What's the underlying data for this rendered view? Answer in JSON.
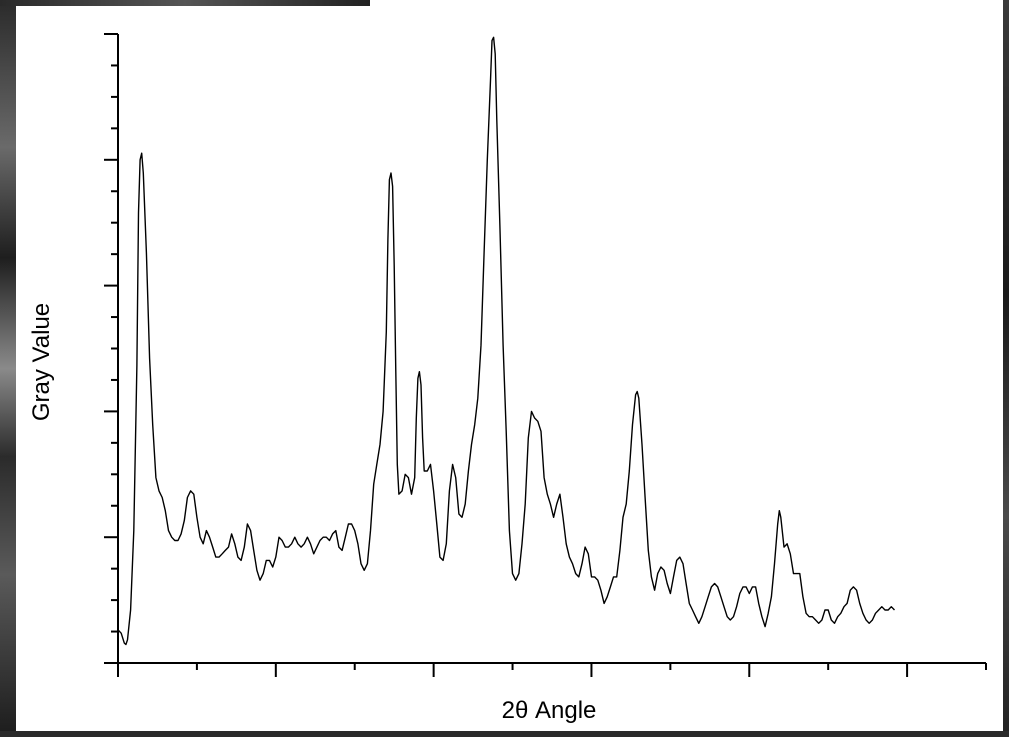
{
  "chart_data": {
    "type": "line",
    "title": "",
    "xlabel": "2θ Angle",
    "ylabel": "Gray Value",
    "xlim": [
      0,
      550
    ],
    "ylim": [
      0,
      95
    ],
    "x_tick_labels": [],
    "y_tick_labels": [],
    "grid": false,
    "legend": "none",
    "line_color": "#000000",
    "series": [
      {
        "points": [
          [
            0,
            5
          ],
          [
            2,
            4.5
          ],
          [
            4,
            3
          ],
          [
            5,
            2.8
          ],
          [
            6,
            3.5
          ],
          [
            8,
            8
          ],
          [
            10,
            20
          ],
          [
            12,
            45
          ],
          [
            13,
            68
          ],
          [
            14,
            76
          ],
          [
            15,
            77
          ],
          [
            16,
            74
          ],
          [
            18,
            62
          ],
          [
            20,
            46
          ],
          [
            22,
            36
          ],
          [
            24,
            28
          ],
          [
            26,
            26
          ],
          [
            28,
            25
          ],
          [
            30,
            23
          ],
          [
            32,
            20
          ],
          [
            34,
            19
          ],
          [
            36,
            18.5
          ],
          [
            38,
            18.5
          ],
          [
            40,
            19.5
          ],
          [
            42,
            21.5
          ],
          [
            44,
            25
          ],
          [
            46,
            26
          ],
          [
            48,
            25.5
          ],
          [
            50,
            22
          ],
          [
            52,
            19
          ],
          [
            54,
            18
          ],
          [
            56,
            20
          ],
          [
            58,
            19
          ],
          [
            60,
            17.5
          ],
          [
            62,
            16
          ],
          [
            64,
            16
          ],
          [
            66,
            16.5
          ],
          [
            68,
            17
          ],
          [
            70,
            17.5
          ],
          [
            72,
            19.5
          ],
          [
            74,
            18
          ],
          [
            76,
            16
          ],
          [
            78,
            15.5
          ],
          [
            80,
            17.5
          ],
          [
            82,
            21
          ],
          [
            84,
            20
          ],
          [
            86,
            17
          ],
          [
            88,
            14
          ],
          [
            90,
            12.5
          ],
          [
            92,
            13.5
          ],
          [
            94,
            15.5
          ],
          [
            96,
            15.5
          ],
          [
            98,
            14.5
          ],
          [
            100,
            16
          ],
          [
            102,
            19
          ],
          [
            104,
            18.5
          ],
          [
            106,
            17.5
          ],
          [
            108,
            17.5
          ],
          [
            110,
            18
          ],
          [
            112,
            19
          ],
          [
            114,
            18
          ],
          [
            116,
            17.5
          ],
          [
            118,
            18
          ],
          [
            120,
            19
          ],
          [
            122,
            18
          ],
          [
            124,
            16.5
          ],
          [
            126,
            17.5
          ],
          [
            128,
            18.5
          ],
          [
            130,
            19
          ],
          [
            132,
            19
          ],
          [
            134,
            18.5
          ],
          [
            136,
            19.5
          ],
          [
            138,
            20
          ],
          [
            140,
            17.5
          ],
          [
            142,
            17
          ],
          [
            144,
            19
          ],
          [
            146,
            21
          ],
          [
            148,
            21
          ],
          [
            150,
            20
          ],
          [
            152,
            18
          ],
          [
            154,
            15
          ],
          [
            156,
            14
          ],
          [
            158,
            15
          ],
          [
            160,
            20
          ],
          [
            162,
            27
          ],
          [
            164,
            30
          ],
          [
            166,
            33
          ],
          [
            168,
            38
          ],
          [
            170,
            50
          ],
          [
            171,
            64
          ],
          [
            172,
            73
          ],
          [
            173,
            74
          ],
          [
            174,
            72
          ],
          [
            175,
            60
          ],
          [
            176,
            44
          ],
          [
            177,
            30
          ],
          [
            178,
            25.5
          ],
          [
            180,
            26
          ],
          [
            182,
            28.5
          ],
          [
            184,
            28
          ],
          [
            186,
            25.5
          ],
          [
            188,
            28
          ],
          [
            189,
            37
          ],
          [
            190,
            43
          ],
          [
            191,
            44
          ],
          [
            192,
            42
          ],
          [
            193,
            34
          ],
          [
            194,
            29
          ],
          [
            196,
            29
          ],
          [
            198,
            30
          ],
          [
            200,
            26
          ],
          [
            202,
            21
          ],
          [
            204,
            16
          ],
          [
            206,
            15.5
          ],
          [
            208,
            18
          ],
          [
            210,
            26
          ],
          [
            212,
            30
          ],
          [
            214,
            28
          ],
          [
            216,
            22.5
          ],
          [
            218,
            22
          ],
          [
            220,
            24
          ],
          [
            222,
            29
          ],
          [
            224,
            33
          ],
          [
            226,
            36
          ],
          [
            228,
            40
          ],
          [
            230,
            48
          ],
          [
            232,
            62
          ],
          [
            234,
            76
          ],
          [
            236,
            88
          ],
          [
            237,
            94
          ],
          [
            238,
            94.5
          ],
          [
            239,
            92
          ],
          [
            240,
            82
          ],
          [
            242,
            66
          ],
          [
            244,
            48
          ],
          [
            246,
            35
          ],
          [
            248,
            20
          ],
          [
            250,
            13.5
          ],
          [
            252,
            12.5
          ],
          [
            254,
            13.5
          ],
          [
            256,
            18
          ],
          [
            258,
            24
          ],
          [
            260,
            34
          ],
          [
            262,
            38
          ],
          [
            264,
            37
          ],
          [
            266,
            36.5
          ],
          [
            268,
            35
          ],
          [
            270,
            28
          ],
          [
            272,
            25.5
          ],
          [
            274,
            24
          ],
          [
            276,
            22
          ],
          [
            278,
            24
          ],
          [
            280,
            25.5
          ],
          [
            282,
            22
          ],
          [
            284,
            18
          ],
          [
            286,
            16
          ],
          [
            288,
            15
          ],
          [
            290,
            13.5
          ],
          [
            292,
            13
          ],
          [
            294,
            15
          ],
          [
            296,
            17.5
          ],
          [
            298,
            16.5
          ],
          [
            300,
            13
          ],
          [
            302,
            13
          ],
          [
            304,
            12.5
          ],
          [
            306,
            11
          ],
          [
            308,
            9
          ],
          [
            310,
            10
          ],
          [
            312,
            11.5
          ],
          [
            314,
            13
          ],
          [
            316,
            13
          ],
          [
            318,
            17
          ],
          [
            320,
            22
          ],
          [
            322,
            24
          ],
          [
            324,
            29
          ],
          [
            326,
            36
          ],
          [
            328,
            40.5
          ],
          [
            329,
            41
          ],
          [
            330,
            40
          ],
          [
            332,
            33
          ],
          [
            334,
            25
          ],
          [
            336,
            17
          ],
          [
            338,
            13
          ],
          [
            340,
            11
          ],
          [
            342,
            13.5
          ],
          [
            344,
            14.5
          ],
          [
            346,
            14
          ],
          [
            348,
            12
          ],
          [
            350,
            10.5
          ],
          [
            352,
            13
          ],
          [
            354,
            15.5
          ],
          [
            356,
            16
          ],
          [
            358,
            15
          ],
          [
            360,
            12
          ],
          [
            362,
            9
          ],
          [
            364,
            8
          ],
          [
            366,
            7
          ],
          [
            368,
            6
          ],
          [
            370,
            7
          ],
          [
            372,
            8.5
          ],
          [
            374,
            10
          ],
          [
            376,
            11.5
          ],
          [
            378,
            12
          ],
          [
            380,
            11.5
          ],
          [
            382,
            10
          ],
          [
            384,
            8.5
          ],
          [
            386,
            7
          ],
          [
            388,
            6.5
          ],
          [
            390,
            7
          ],
          [
            392,
            8.5
          ],
          [
            394,
            10.5
          ],
          [
            396,
            11.5
          ],
          [
            398,
            11.5
          ],
          [
            400,
            10.5
          ],
          [
            402,
            11.5
          ],
          [
            404,
            11.5
          ],
          [
            406,
            9
          ],
          [
            408,
            7
          ],
          [
            410,
            5.5
          ],
          [
            412,
            7.5
          ],
          [
            414,
            10
          ],
          [
            416,
            15
          ],
          [
            418,
            21
          ],
          [
            419,
            23
          ],
          [
            420,
            22
          ],
          [
            422,
            17.5
          ],
          [
            424,
            18
          ],
          [
            426,
            16.5
          ],
          [
            428,
            13.5
          ],
          [
            430,
            13.5
          ],
          [
            432,
            13.5
          ],
          [
            434,
            10
          ],
          [
            436,
            7.5
          ],
          [
            438,
            7
          ],
          [
            440,
            7
          ],
          [
            442,
            6.5
          ],
          [
            444,
            6
          ],
          [
            446,
            6.5
          ],
          [
            448,
            8
          ],
          [
            450,
            8
          ],
          [
            452,
            6.5
          ],
          [
            454,
            6
          ],
          [
            456,
            7
          ],
          [
            458,
            7.5
          ],
          [
            460,
            8.5
          ],
          [
            462,
            9
          ],
          [
            464,
            11
          ],
          [
            466,
            11.5
          ],
          [
            468,
            11
          ],
          [
            470,
            9
          ],
          [
            472,
            7.5
          ],
          [
            474,
            6.5
          ],
          [
            476,
            6
          ],
          [
            478,
            6.5
          ],
          [
            480,
            7.5
          ],
          [
            482,
            8
          ],
          [
            484,
            8.5
          ],
          [
            486,
            8
          ],
          [
            488,
            8
          ],
          [
            490,
            8.5
          ],
          [
            492,
            8
          ]
        ]
      }
    ]
  }
}
